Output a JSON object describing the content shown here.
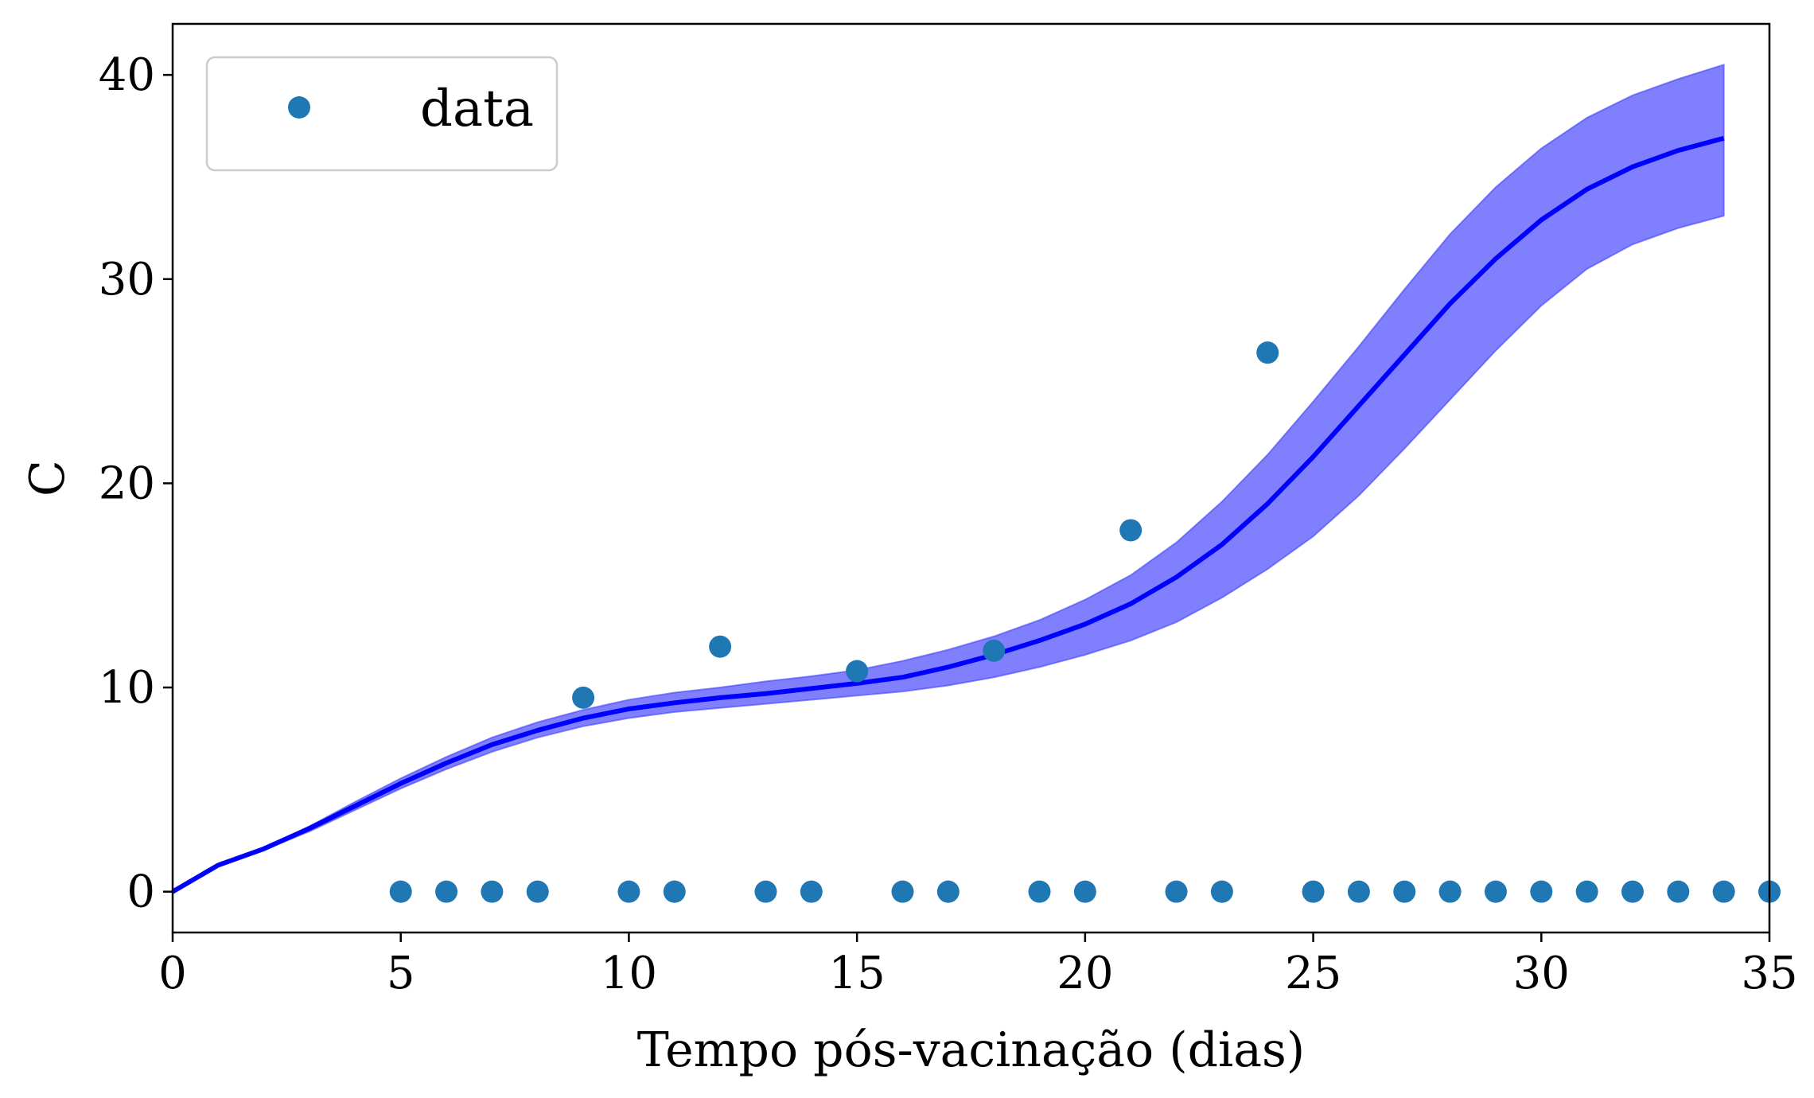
{
  "chart_data": {
    "type": "line",
    "xlabel": "Tempo pós-vacinação (dias)",
    "ylabel": "C",
    "xlim": [
      0,
      35
    ],
    "ylim": [
      -2,
      42.5
    ],
    "xticks": [
      0,
      5,
      10,
      15,
      20,
      25,
      30,
      35
    ],
    "yticks": [
      0,
      10,
      20,
      30,
      40
    ],
    "xtick_labels": [
      "0",
      "5",
      "10",
      "15",
      "20",
      "25",
      "30",
      "35"
    ],
    "ytick_labels": [
      "0",
      "10",
      "20",
      "30",
      "40"
    ],
    "grid": false,
    "legend": {
      "position": "top-left",
      "entries": [
        "data"
      ]
    },
    "colors": {
      "points": "#1f77b4",
      "line": "#0000ff",
      "band": "#8080ff"
    },
    "scatter": {
      "name": "data",
      "x": [
        5,
        6,
        7,
        8,
        9,
        10,
        11,
        12,
        13,
        14,
        15,
        16,
        17,
        18,
        19,
        20,
        21,
        22,
        23,
        24,
        25,
        26,
        27,
        28,
        29,
        30,
        31,
        32,
        33,
        34,
        35
      ],
      "y": [
        0,
        0,
        0,
        0,
        9.5,
        0,
        0,
        12,
        0,
        0,
        10.8,
        0,
        0,
        11.8,
        0,
        0,
        17.7,
        0,
        0,
        26.4,
        0,
        0,
        0,
        0,
        0,
        0,
        0,
        0,
        0,
        0,
        0
      ]
    },
    "model_line": {
      "x": [
        0,
        1,
        2,
        3,
        4,
        5,
        6,
        7,
        8,
        9,
        10,
        11,
        12,
        13,
        14,
        15,
        16,
        17,
        18,
        19,
        20,
        21,
        22,
        23,
        24,
        25,
        26,
        27,
        28,
        29,
        30,
        31,
        32,
        33,
        34
      ],
      "y": [
        0,
        1.3,
        2.1,
        3.1,
        4.2,
        5.3,
        6.3,
        7.2,
        7.9,
        8.5,
        8.95,
        9.25,
        9.5,
        9.7,
        9.95,
        10.2,
        10.5,
        11.0,
        11.6,
        12.3,
        13.1,
        14.1,
        15.4,
        17.0,
        19.0,
        21.3,
        23.8,
        26.3,
        28.8,
        31.0,
        32.9,
        34.4,
        35.5,
        36.3,
        36.9
      ]
    },
    "band": {
      "x": [
        0,
        1,
        2,
        3,
        4,
        5,
        6,
        7,
        8,
        9,
        10,
        11,
        12,
        13,
        14,
        15,
        16,
        17,
        18,
        19,
        20,
        21,
        22,
        23,
        24,
        25,
        26,
        27,
        28,
        29,
        30,
        31,
        32,
        33,
        34
      ],
      "lower": [
        0,
        1.25,
        2.05,
        2.95,
        4.0,
        5.05,
        6.0,
        6.85,
        7.55,
        8.1,
        8.5,
        8.8,
        9.0,
        9.2,
        9.4,
        9.6,
        9.8,
        10.1,
        10.5,
        11.0,
        11.6,
        12.3,
        13.2,
        14.4,
        15.8,
        17.4,
        19.4,
        21.7,
        24.1,
        26.5,
        28.7,
        30.5,
        31.7,
        32.5,
        33.1
      ],
      "upper": [
        0,
        1.35,
        2.15,
        3.2,
        4.4,
        5.55,
        6.6,
        7.55,
        8.3,
        8.9,
        9.4,
        9.75,
        10.0,
        10.3,
        10.55,
        10.85,
        11.3,
        11.85,
        12.5,
        13.3,
        14.3,
        15.5,
        17.1,
        19.1,
        21.4,
        24.0,
        26.7,
        29.5,
        32.2,
        34.5,
        36.4,
        37.9,
        39.0,
        39.8,
        40.5
      ]
    }
  }
}
